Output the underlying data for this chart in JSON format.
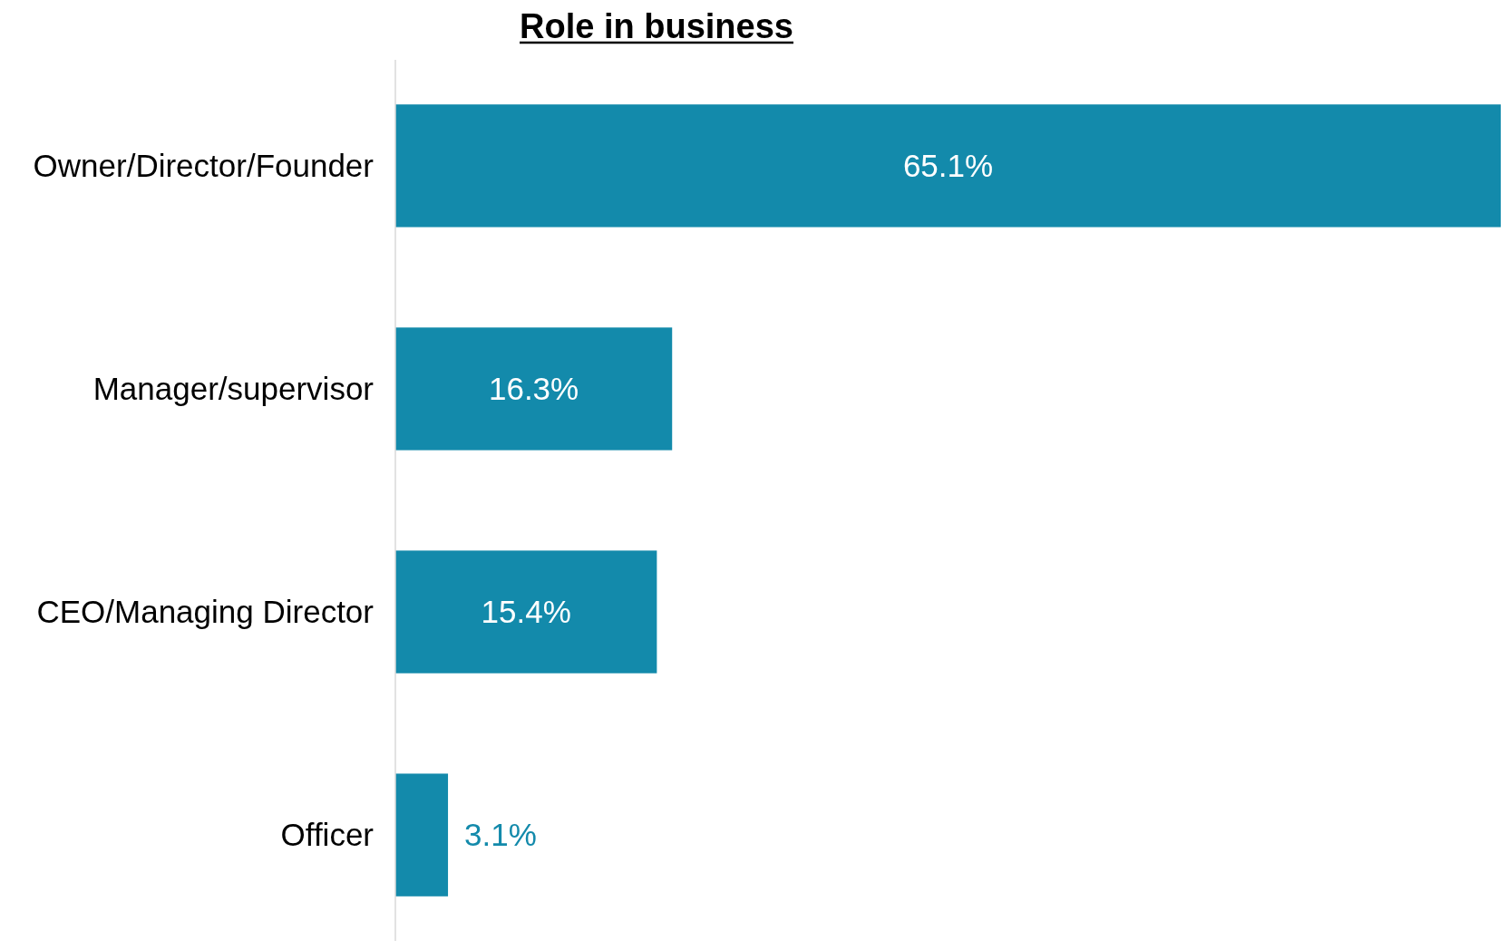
{
  "chart_data": {
    "type": "bar",
    "title": "Role in business",
    "orientation": "horizontal",
    "categories": [
      "Owner/Director/Founder",
      "Manager/supervisor",
      "CEO/Managing Director",
      "Officer"
    ],
    "values": [
      65.1,
      16.3,
      15.4,
      3.1
    ],
    "value_labels": [
      "65.1%",
      "16.3%",
      "15.4%",
      "3.1%"
    ],
    "color": "#138aab"
  }
}
